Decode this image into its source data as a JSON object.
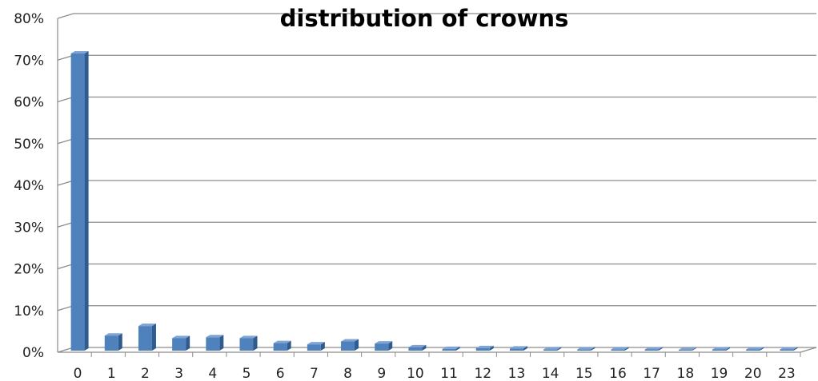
{
  "chart_data": {
    "type": "bar",
    "title": "distribution of crowns",
    "xlabel": "",
    "ylabel": "",
    "categories": [
      "0",
      "1",
      "2",
      "3",
      "4",
      "5",
      "6",
      "7",
      "8",
      "9",
      "10",
      "11",
      "12",
      "13",
      "14",
      "15",
      "16",
      "17",
      "18",
      "19",
      "20",
      "23"
    ],
    "values": [
      71.2,
      3.6,
      5.9,
      3.0,
      3.2,
      3.0,
      1.8,
      1.5,
      2.2,
      1.7,
      0.8,
      0.4,
      0.6,
      0.5,
      0.3,
      0.3,
      0.3,
      0.1,
      0.2,
      0.1,
      0.1,
      0.1
    ],
    "value_format": "percent",
    "ylim": [
      0,
      80
    ],
    "yticks": [
      0,
      10,
      20,
      30,
      40,
      50,
      60,
      70,
      80
    ],
    "ytick_labels": [
      "0%",
      "10%",
      "20%",
      "30%",
      "40%",
      "50%",
      "60%",
      "70%",
      "80%"
    ],
    "grid": true,
    "style": "3d-column",
    "colors": {
      "bar_front": "#4F81BD",
      "bar_side": "#2F5B8F",
      "bar_top": "#7FA3D3",
      "grid": "#8C8C8C",
      "wall": "#FFFFFF"
    }
  }
}
